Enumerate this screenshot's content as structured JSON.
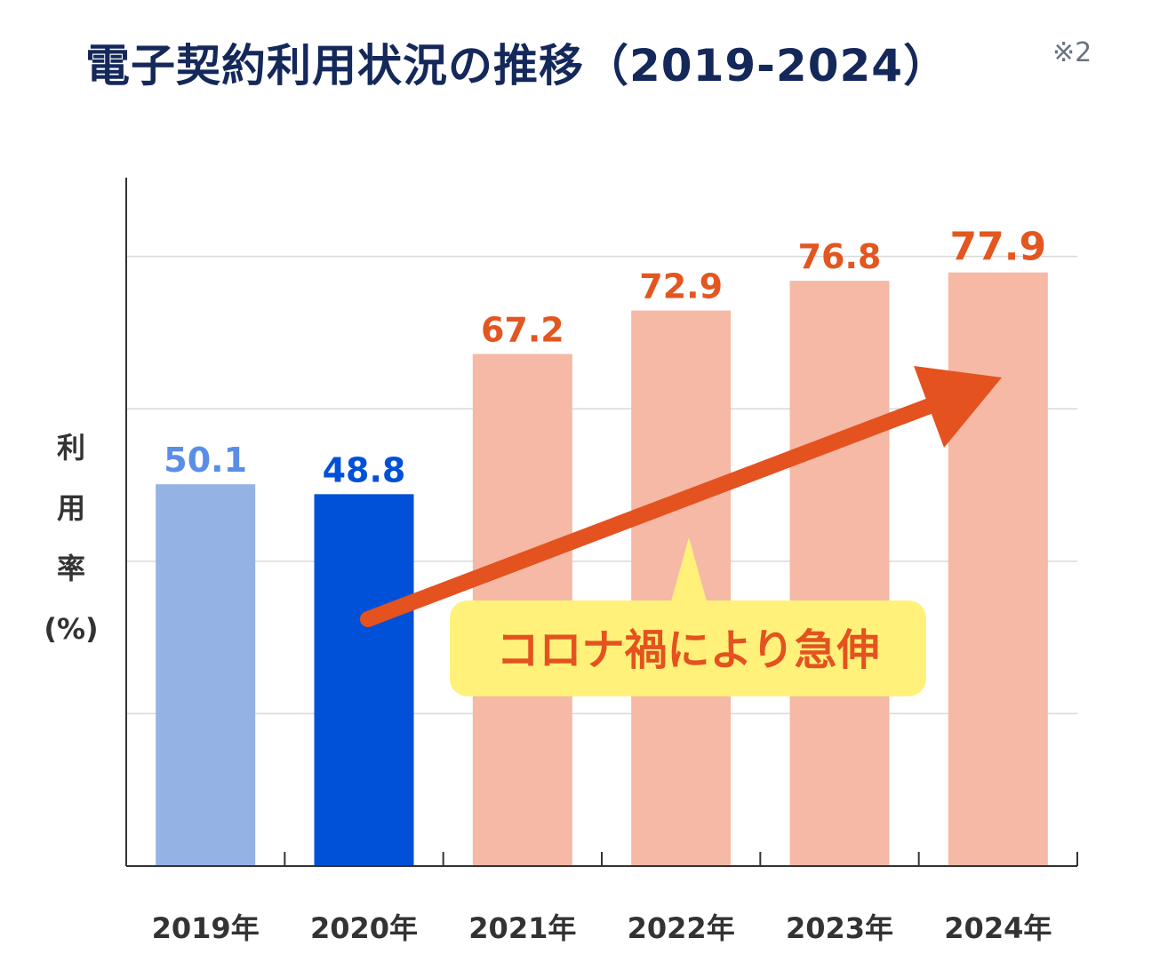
{
  "title": "電子契約利用状況の推移（2019-2024）",
  "note": "※2",
  "chart_data": {
    "type": "bar",
    "title": "電子契約利用状況の推移（2019-2024）",
    "ylabel_chars": [
      "利",
      "用",
      "率",
      "(%)"
    ],
    "ylim": [
      0,
      95
    ],
    "grid": true,
    "categories": [
      "2019年",
      "2020年",
      "2021年",
      "2022年",
      "2023年",
      "2024年"
    ],
    "values": [
      50.1,
      48.8,
      67.2,
      72.9,
      76.8,
      77.9
    ],
    "bar_colors": [
      "#94b2e3",
      "#0050d8",
      "#f5b9a5",
      "#f5b9a5",
      "#f5b9a5",
      "#f5b9a5"
    ],
    "label_colors": [
      "#5a8ee6",
      "#0050d8",
      "#e45620",
      "#e45620",
      "#e45620",
      "#e45620"
    ],
    "annotation": "コロナ禍により急伸",
    "arrow_color": "#e4521f",
    "callout_color": "#fff17a"
  }
}
